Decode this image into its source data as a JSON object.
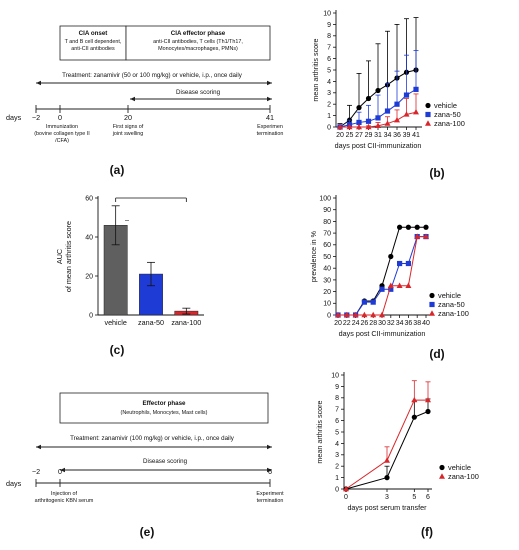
{
  "panels": {
    "a": {
      "label": "(a)",
      "box_left_title": "CIA onset",
      "box_left_lines": [
        "T and B cell dependent,",
        "anti-CII antibodies"
      ],
      "box_right_title": "CIA effector phase",
      "box_right_lines": [
        "anti-CII antibodies, T cells (Th1/Th17,",
        "Monocytes/macrophages, PMNs)"
      ],
      "treatment": "Treatment: zanamivir (50 or 100 mg/kg) or vehicle, i.p., once daily",
      "disease_scoring": "Disease scoring",
      "days_label": "days",
      "day_ticks": [
        "−2",
        "0",
        "20",
        "41"
      ],
      "ann_immunization": [
        "Immunization",
        "(bovine collagen type II",
        "/CFA)"
      ],
      "ann_first_signs": [
        "First signs of",
        "joint swelling"
      ],
      "ann_termination": [
        "Experimen",
        "termination"
      ]
    },
    "b": {
      "label": "(b)"
    },
    "c": {
      "label": "(c)",
      "significance": "–"
    },
    "d": {
      "label": "(d)"
    },
    "e": {
      "label": "(e)",
      "box_title": "Effector phase",
      "box_line": "(Neutrophils, Monocytes, Mast cells)",
      "treatment": "Treatment: zanamivir (100 mg/kg) or vehicle, i.p., once daily",
      "disease_scoring": "Disease scoring",
      "days_label": "days",
      "day_ticks": [
        "−2",
        "0",
        "6"
      ],
      "ann_injection": [
        "Injection of",
        "arthritogenic KBN serum"
      ],
      "ann_termination": [
        "Experiment",
        "termination"
      ]
    },
    "f": {
      "label": "(f)"
    }
  },
  "colors": {
    "vehicle": "#000000",
    "zana50": "#1f3bd6",
    "zana100": "#d9262b",
    "vehicle_bar": "#5f5f5f"
  },
  "chart_data": [
    {
      "id": "b",
      "type": "line",
      "x": [
        20,
        25,
        27,
        29,
        31,
        34,
        36,
        39,
        41
      ],
      "xlabel": "days post CII-immunization",
      "ylabel": "mean arthritis score",
      "ylim": [
        0,
        10
      ],
      "yticks": [
        0,
        1,
        2,
        3,
        4,
        5,
        6,
        7,
        8,
        9,
        10
      ],
      "legend_position": "right",
      "series": [
        {
          "name": "vehicle",
          "marker": "circle",
          "color": "#000000",
          "values": [
            0,
            0.6,
            1.7,
            2.5,
            3.2,
            3.7,
            4.3,
            4.8,
            5.0
          ],
          "errors": [
            0.3,
            1.3,
            3.0,
            3.3,
            4.1,
            4.7,
            4.7,
            4.7,
            4.6
          ]
        },
        {
          "name": "zana-50",
          "marker": "square",
          "color": "#1f3bd6",
          "values": [
            0,
            0.2,
            0.4,
            0.5,
            0.8,
            1.4,
            2.0,
            2.8,
            3.3
          ],
          "errors": [
            0.2,
            0.4,
            0.9,
            1.4,
            2.0,
            2.4,
            2.9,
            3.5,
            3.4
          ]
        },
        {
          "name": "zana-100",
          "marker": "triangle",
          "color": "#d9262b",
          "values": [
            0,
            0,
            0,
            0,
            0.1,
            0.3,
            0.6,
            1.1,
            1.3
          ],
          "errors": [
            0,
            0,
            0,
            0.1,
            0.3,
            0.6,
            0.9,
            1.4,
            1.6
          ]
        }
      ]
    },
    {
      "id": "c",
      "type": "bar",
      "categories": [
        "vehicle",
        "zana-50",
        "zana-100"
      ],
      "values": [
        46,
        21,
        2
      ],
      "errors": [
        10,
        6,
        1.5
      ],
      "colors": [
        "#5f5f5f",
        "#1f3bd6",
        "#d9262b"
      ],
      "ylabel": [
        "AUC",
        "of mean arthritis score"
      ],
      "ylim": [
        0,
        60
      ],
      "yticks": [
        0,
        20,
        40,
        60
      ]
    },
    {
      "id": "d",
      "type": "line",
      "x": [
        20,
        22,
        24,
        26,
        28,
        30,
        32,
        34,
        36,
        38,
        40
      ],
      "xlabel": "days post CII-immunization",
      "ylabel": "prevalence in %",
      "ylim": [
        0,
        100
      ],
      "yticks": [
        0,
        10,
        20,
        30,
        40,
        50,
        60,
        70,
        80,
        90,
        100
      ],
      "legend_position": "right",
      "series": [
        {
          "name": "vehicle",
          "marker": "circle",
          "color": "#000000",
          "values": [
            0,
            0,
            0,
            12,
            12,
            25,
            50,
            75,
            75,
            75,
            75
          ]
        },
        {
          "name": "zana-50",
          "marker": "square",
          "color": "#1f3bd6",
          "values": [
            0,
            0,
            0,
            11,
            11,
            22,
            22,
            44,
            44,
            67,
            67
          ]
        },
        {
          "name": "zana-100",
          "marker": "triangle",
          "color": "#d9262b",
          "values": [
            0,
            0,
            0,
            0,
            0,
            0,
            25,
            25,
            25,
            67,
            67
          ]
        }
      ]
    },
    {
      "id": "f",
      "type": "line",
      "x": [
        0,
        3,
        5,
        6
      ],
      "xlabel": "days post serum transfer",
      "ylabel": "mean arthritis score",
      "ylim": [
        0,
        10
      ],
      "yticks": [
        0,
        1,
        2,
        3,
        4,
        5,
        6,
        7,
        8,
        9,
        10
      ],
      "legend_position": "right",
      "series": [
        {
          "name": "vehicle",
          "marker": "circle",
          "color": "#000000",
          "values": [
            0,
            1.0,
            6.3,
            6.8
          ],
          "errors": [
            0,
            1.0,
            1.4,
            1.1
          ]
        },
        {
          "name": "zana-100",
          "marker": "triangle",
          "color": "#d9262b",
          "values": [
            0,
            2.5,
            7.8,
            7.8
          ],
          "errors": [
            0,
            1.2,
            1.7,
            1.6
          ]
        }
      ]
    }
  ]
}
